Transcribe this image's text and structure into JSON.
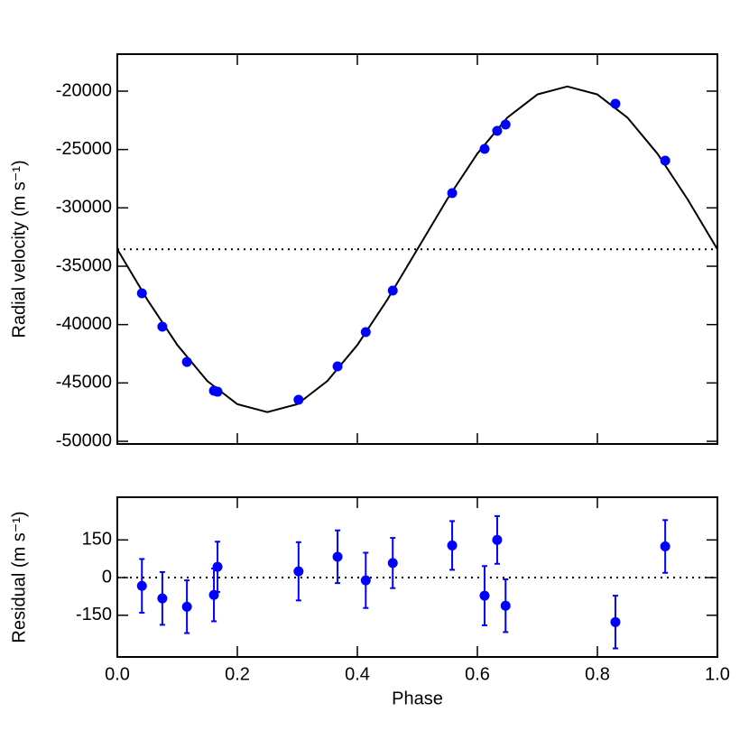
{
  "chart_data": [
    {
      "type": "line",
      "ylabel": "Radial velocity (m s⁻¹)",
      "xlim": [
        0,
        1
      ],
      "ylim": [
        -50230,
        -16830
      ],
      "xticks": [
        0,
        0.2,
        0.4,
        0.6,
        0.8,
        1
      ],
      "show_xtick_labels": false,
      "yticks": [
        -50000,
        -45000,
        -40000,
        -35000,
        -30000,
        -25000,
        -20000
      ],
      "hline": -33550,
      "series": [
        {
          "type": "line",
          "color": "#000000",
          "x": [
            0,
            0.05,
            0.1,
            0.15,
            0.2,
            0.25,
            0.3,
            0.35,
            0.4,
            0.45,
            0.5,
            0.55,
            0.6,
            0.65,
            0.7,
            0.75,
            0.8,
            0.85,
            0.9,
            0.95,
            1
          ],
          "values": [
            -33550,
            -37861,
            -41750,
            -44836,
            -46818,
            -47500,
            -46818,
            -44836,
            -41750,
            -37861,
            -33550,
            -29239,
            -25350,
            -22264,
            -20282,
            -19600,
            -20282,
            -22264,
            -25350,
            -29239,
            -33550
          ]
        },
        {
          "type": "scatter",
          "color": "#0000ff",
          "x": [
            0.041,
            0.075,
            0.116,
            0.161,
            0.167,
            0.302,
            0.367,
            0.414,
            0.459,
            0.558,
            0.612,
            0.633,
            0.647,
            0.83,
            0.913
          ],
          "values": [
            -37320,
            -40180,
            -43200,
            -45670,
            -45750,
            -46440,
            -43580,
            -40640,
            -37090,
            -28740,
            -24950,
            -23400,
            -22860,
            -21080,
            -25950
          ]
        }
      ]
    },
    {
      "type": "errorbar",
      "ylabel": "Residual (m s⁻¹)",
      "xlabel": "Phase",
      "xlim": [
        0,
        1
      ],
      "ylim": [
        -316,
        320
      ],
      "xticks": [
        {
          "value": 0,
          "label": "0.0"
        },
        0.2,
        0.4,
        0.6,
        0.8,
        {
          "value": 1,
          "label": "1.0"
        }
      ],
      "show_xtick_labels": true,
      "yticks": [
        -150,
        0,
        150
      ],
      "hline": 0,
      "series": [
        {
          "type": "errorbar",
          "color": "#0000ff",
          "x": [
            0.041,
            0.075,
            0.116,
            0.161,
            0.167,
            0.302,
            0.367,
            0.414,
            0.459,
            0.558,
            0.612,
            0.633,
            0.647,
            0.83,
            0.913
          ],
          "values": [
            -33,
            -83,
            -116,
            -69,
            43,
            25,
            83,
            -11,
            58,
            128,
            -72,
            150,
            -112,
            -177,
            124
          ],
          "errors": [
            107,
            105,
            105,
            105,
            100,
            116,
            105,
            110,
            100,
            97,
            118,
            95,
            105,
            105,
            105
          ]
        }
      ]
    }
  ]
}
